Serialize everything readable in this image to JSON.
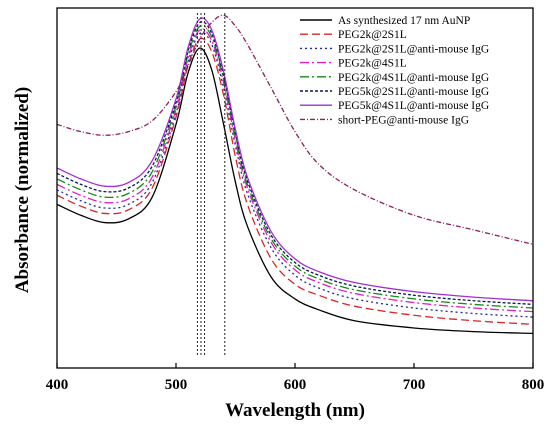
{
  "chart_data": {
    "type": "line",
    "title": "",
    "xlabel": "Wavelength (nm)",
    "ylabel": "Absorbance (normalized)",
    "xlim": [
      400,
      800
    ],
    "x_ticks": [
      400,
      500,
      600,
      700,
      800
    ],
    "y_ticks_shown": false,
    "grid": false,
    "legend_position": "top-right",
    "reference_lines": [
      {
        "x": 518,
        "style": "dotted"
      },
      {
        "x": 521,
        "style": "dotted"
      },
      {
        "x": 524,
        "style": "dotted"
      },
      {
        "x": 541,
        "style": "dotted"
      }
    ],
    "x": [
      400,
      420,
      440,
      460,
      480,
      500,
      510,
      520,
      530,
      540,
      550,
      560,
      580,
      600,
      620,
      650,
      700,
      750,
      800
    ],
    "series": [
      {
        "name": "As synthesized 17 nm AuNP",
        "color": "#000000",
        "dash": "solid",
        "values": [
          0.5,
          0.47,
          0.45,
          0.46,
          0.52,
          0.72,
          0.86,
          0.93,
          0.87,
          0.72,
          0.56,
          0.44,
          0.3,
          0.24,
          0.21,
          0.18,
          0.16,
          0.15,
          0.145
        ]
      },
      {
        "name": "PEG2k@2S1L",
        "color": "#d62728",
        "dash": "8,4",
        "values": [
          0.525,
          0.495,
          0.475,
          0.485,
          0.545,
          0.74,
          0.88,
          0.955,
          0.92,
          0.8,
          0.63,
          0.5,
          0.35,
          0.28,
          0.25,
          0.22,
          0.195,
          0.18,
          0.17
        ]
      },
      {
        "name": "PEG2k@2S1L@anti-mouse IgG",
        "color": "#1f2a9c",
        "dash": "2,3",
        "values": [
          0.54,
          0.51,
          0.49,
          0.5,
          0.56,
          0.75,
          0.89,
          0.97,
          0.94,
          0.82,
          0.66,
          0.53,
          0.38,
          0.305,
          0.27,
          0.24,
          0.215,
          0.2,
          0.19
        ]
      },
      {
        "name": "PEG2k@4S1L",
        "color": "#e020c0",
        "dash": "9,3,2,3",
        "values": [
          0.555,
          0.525,
          0.505,
          0.515,
          0.575,
          0.76,
          0.9,
          0.98,
          0.95,
          0.835,
          0.675,
          0.545,
          0.395,
          0.32,
          0.285,
          0.255,
          0.23,
          0.215,
          0.205
        ]
      },
      {
        "name": "PEG2k@4S1L@anti-mouse IgG",
        "color": "#138a13",
        "dash": "9,3,2,3",
        "values": [
          0.57,
          0.54,
          0.52,
          0.53,
          0.59,
          0.77,
          0.91,
          0.99,
          0.96,
          0.845,
          0.685,
          0.555,
          0.405,
          0.33,
          0.295,
          0.265,
          0.24,
          0.225,
          0.215
        ]
      },
      {
        "name": "PEG5k@2S1L@anti-mouse IgG",
        "color": "#0a1650",
        "dash": "3,2",
        "values": [
          0.585,
          0.555,
          0.535,
          0.545,
          0.605,
          0.78,
          0.92,
          1.0,
          0.97,
          0.855,
          0.695,
          0.565,
          0.415,
          0.34,
          0.305,
          0.275,
          0.25,
          0.235,
          0.225
        ]
      },
      {
        "name": "PEG5k@4S1L@anti-mouse IgG",
        "color": "#a030d0",
        "dash": "solid",
        "values": [
          0.6,
          0.57,
          0.55,
          0.56,
          0.62,
          0.79,
          0.93,
          1.01,
          0.98,
          0.865,
          0.705,
          0.575,
          0.425,
          0.35,
          0.315,
          0.285,
          0.26,
          0.245,
          0.235
        ]
      },
      {
        "name": "short-PEG@anti-mouse IgG",
        "color": "#8b2060",
        "dash": "5,2,1,2",
        "values": [
          0.72,
          0.7,
          0.69,
          0.7,
          0.73,
          0.81,
          0.88,
          0.955,
          1.0,
          1.02,
          0.99,
          0.94,
          0.82,
          0.7,
          0.61,
          0.54,
          0.47,
          0.43,
          0.39
        ]
      }
    ]
  }
}
